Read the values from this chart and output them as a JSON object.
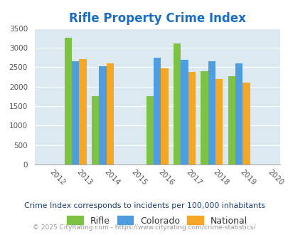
{
  "title": "Rifle Property Crime Index",
  "all_years": [
    2012,
    2013,
    2014,
    2015,
    2016,
    2017,
    2018,
    2019,
    2020
  ],
  "data_years": [
    2013,
    2014,
    2016,
    2017,
    2018,
    2019
  ],
  "rifle": [
    3250,
    1750,
    1750,
    3100,
    2400,
    2270
  ],
  "colorado": [
    2650,
    2520,
    2750,
    2680,
    2660,
    2590
  ],
  "national": [
    2700,
    2590,
    2460,
    2370,
    2200,
    2100
  ],
  "rifle_color": "#7dc242",
  "colorado_color": "#4d9de0",
  "national_color": "#f5a623",
  "bg_color": "#dce9f0",
  "ylim": [
    0,
    3500
  ],
  "yticks": [
    0,
    500,
    1000,
    1500,
    2000,
    2500,
    3000,
    3500
  ],
  "xlim": [
    2011.5,
    2020.5
  ],
  "title_color": "#1a6fc4",
  "legend_labels": [
    "Rifle",
    "Colorado",
    "National"
  ],
  "footnote1": "Crime Index corresponds to incidents per 100,000 inhabitants",
  "footnote2": "© 2025 CityRating.com - https://www.cityrating.com/crime-statistics/",
  "footnote1_color": "#1a3c6e",
  "footnote2_color": "#999999",
  "bar_width": 0.27,
  "grid_color": "#ffffff"
}
